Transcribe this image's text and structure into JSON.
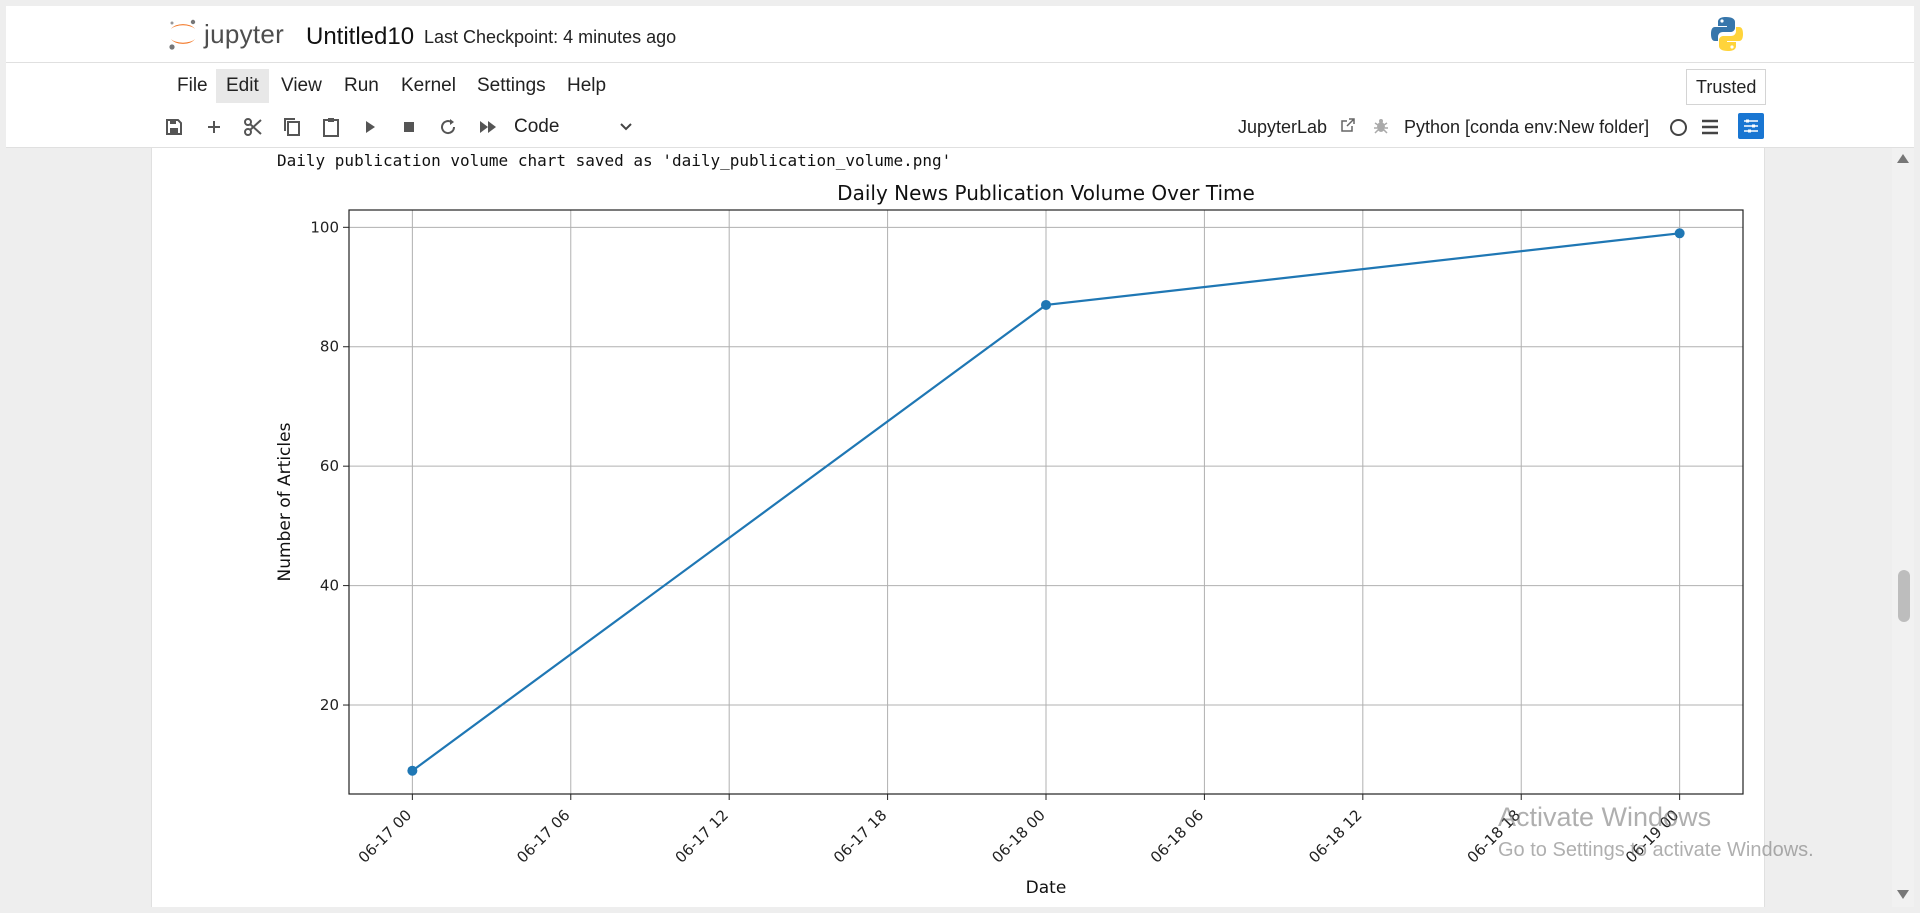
{
  "header": {
    "logo_text": "jupyter",
    "notebook_title": "Untitled10",
    "checkpoint": "Last Checkpoint: 4 minutes ago"
  },
  "menu": {
    "items": [
      "File",
      "Edit",
      "View",
      "Run",
      "Kernel",
      "Settings",
      "Help"
    ],
    "active": "Edit",
    "trusted": "Trusted"
  },
  "toolbar": {
    "icons": [
      "save-icon",
      "add-cell-icon",
      "cut-icon",
      "copy-icon",
      "paste-icon",
      "run-icon",
      "stop-icon",
      "restart-icon",
      "run-all-icon"
    ],
    "cell_type": "Code",
    "jupyterlab_link": "JupyterLab",
    "kernel": "Python [conda env:New folder]",
    "kernel_status": "idle"
  },
  "output": {
    "stdout": "Daily publication volume chart saved as 'daily_publication_volume.png'"
  },
  "chart_data": {
    "type": "line",
    "title": "Daily News Publication Volume Over Time",
    "xlabel": "Date",
    "ylabel": "Number of Articles",
    "x": [
      "2024-06-17",
      "2024-06-18",
      "2024-06-19"
    ],
    "values": [
      9,
      87,
      99
    ],
    "x_ticks": [
      "06-17 00",
      "06-17 06",
      "06-17 12",
      "06-17 18",
      "06-18 00",
      "06-18 06",
      "06-18 12",
      "06-18 18",
      "06-19 00"
    ],
    "y_ticks": [
      20,
      40,
      60,
      80,
      100
    ],
    "ylim": [
      5.1,
      102.9
    ],
    "grid": true,
    "marker": "circle",
    "color": "#1f77b4"
  },
  "watermark": {
    "line1": "Activate Windows",
    "line2": "Go to Settings to activate Windows."
  },
  "colors": {
    "accent": "#1976d2",
    "jupyter_orange": "#f37726"
  }
}
